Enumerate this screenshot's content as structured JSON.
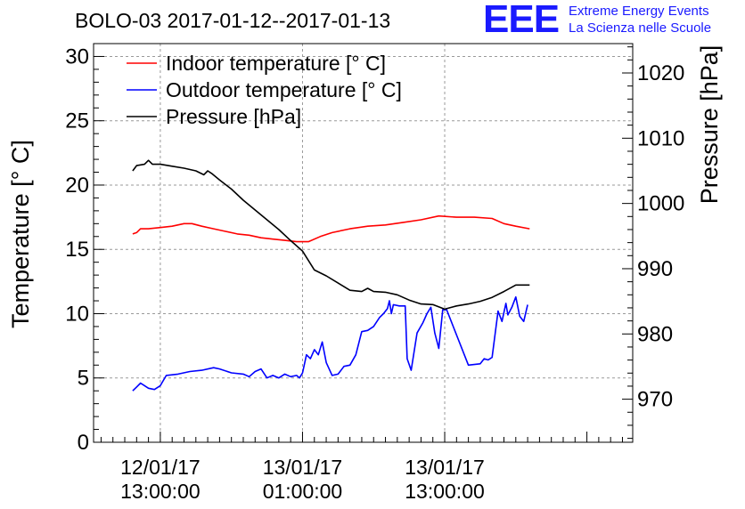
{
  "header": {
    "title": "BOLO-03 2017-01-12--2017-01-13",
    "logo": "EEE",
    "logo_line1": "Extreme Energy Events",
    "logo_line2": "La Scienza nelle Scuole"
  },
  "chart_data": {
    "type": "line",
    "title": "BOLO-03 2017-01-12--2017-01-13",
    "ylabel": "Temperature [° C]",
    "y2label": "Pressure [hPa]",
    "ylim": [
      0,
      31
    ],
    "y2lim": [
      963.4,
      1024.5
    ],
    "xlim": [
      "2017-01-12 07:22",
      "2017-01-14 04:52"
    ],
    "yticks": [
      0,
      5,
      10,
      15,
      20,
      25,
      30
    ],
    "y2ticks": [
      970,
      980,
      990,
      1000,
      1010,
      1020
    ],
    "xticks": [
      {
        "x": "2017-01-12 13:00",
        "line1": "12/01/17",
        "line2": "13:00:00"
      },
      {
        "x": "2017-01-13 01:00",
        "line1": "13/01/17",
        "line2": "01:00:00"
      },
      {
        "x": "2017-01-13 13:00",
        "line1": "13/01/17",
        "line2": "13:00:00"
      }
    ],
    "grid": true,
    "legend_position": "top-left",
    "series": [
      {
        "name": "Indoor temperature [° C]",
        "color": "#ff0000",
        "axis": "left",
        "points": [
          [
            "2017-01-12 10:40",
            16.2
          ],
          [
            "2017-01-12 11:00",
            16.3
          ],
          [
            "2017-01-12 11:20",
            16.6
          ],
          [
            "2017-01-12 12:00",
            16.6
          ],
          [
            "2017-01-12 13:00",
            16.7
          ],
          [
            "2017-01-12 14:00",
            16.8
          ],
          [
            "2017-01-12 15:00",
            17.0
          ],
          [
            "2017-01-12 15:40",
            17.0
          ],
          [
            "2017-01-12 16:30",
            16.8
          ],
          [
            "2017-01-12 17:30",
            16.6
          ],
          [
            "2017-01-12 18:30",
            16.4
          ],
          [
            "2017-01-12 19:30",
            16.2
          ],
          [
            "2017-01-12 20:30",
            16.1
          ],
          [
            "2017-01-12 21:30",
            15.9
          ],
          [
            "2017-01-12 22:30",
            15.8
          ],
          [
            "2017-01-12 23:30",
            15.7
          ],
          [
            "2017-01-13 00:30",
            15.6
          ],
          [
            "2017-01-13 01:30",
            15.6
          ],
          [
            "2017-01-13 02:30",
            16.0
          ],
          [
            "2017-01-13 03:30",
            16.3
          ],
          [
            "2017-01-13 05:00",
            16.6
          ],
          [
            "2017-01-13 06:30",
            16.8
          ],
          [
            "2017-01-13 08:00",
            16.9
          ],
          [
            "2017-01-13 09:30",
            17.1
          ],
          [
            "2017-01-13 11:00",
            17.3
          ],
          [
            "2017-01-13 12:30",
            17.6
          ],
          [
            "2017-01-13 14:00",
            17.5
          ],
          [
            "2017-01-13 15:30",
            17.5
          ],
          [
            "2017-01-13 17:00",
            17.4
          ],
          [
            "2017-01-13 18:00",
            17.0
          ],
          [
            "2017-01-13 19:00",
            16.8
          ],
          [
            "2017-01-13 20:10",
            16.6
          ]
        ]
      },
      {
        "name": "Outdoor temperature [° C]",
        "color": "#0000ff",
        "axis": "left",
        "points": [
          [
            "2017-01-12 10:40",
            4.0
          ],
          [
            "2017-01-12 11:00",
            4.3
          ],
          [
            "2017-01-12 11:20",
            4.6
          ],
          [
            "2017-01-12 11:40",
            4.4
          ],
          [
            "2017-01-12 12:00",
            4.2
          ],
          [
            "2017-01-12 12:30",
            4.1
          ],
          [
            "2017-01-12 13:00",
            4.4
          ],
          [
            "2017-01-12 13:30",
            5.2
          ],
          [
            "2017-01-12 14:30",
            5.3
          ],
          [
            "2017-01-12 15:30",
            5.5
          ],
          [
            "2017-01-12 16:30",
            5.6
          ],
          [
            "2017-01-12 17:30",
            5.8
          ],
          [
            "2017-01-12 18:00",
            5.7
          ],
          [
            "2017-01-12 19:00",
            5.4
          ],
          [
            "2017-01-12 20:00",
            5.3
          ],
          [
            "2017-01-12 20:30",
            5.1
          ],
          [
            "2017-01-12 21:00",
            5.5
          ],
          [
            "2017-01-12 21:30",
            5.7
          ],
          [
            "2017-01-12 22:00",
            5.0
          ],
          [
            "2017-01-12 22:30",
            5.2
          ],
          [
            "2017-01-12 23:00",
            5.0
          ],
          [
            "2017-01-12 23:30",
            5.3
          ],
          [
            "2017-01-13 00:00",
            5.1
          ],
          [
            "2017-01-13 00:30",
            5.2
          ],
          [
            "2017-01-13 00:45",
            5.0
          ],
          [
            "2017-01-13 01:00",
            5.4
          ],
          [
            "2017-01-13 01:20",
            6.8
          ],
          [
            "2017-01-13 01:40",
            6.5
          ],
          [
            "2017-01-13 02:00",
            7.2
          ],
          [
            "2017-01-13 02:20",
            6.8
          ],
          [
            "2017-01-13 02:40",
            7.8
          ],
          [
            "2017-01-13 03:00",
            6.2
          ],
          [
            "2017-01-13 03:30",
            5.2
          ],
          [
            "2017-01-13 04:00",
            5.3
          ],
          [
            "2017-01-13 04:30",
            5.9
          ],
          [
            "2017-01-13 05:00",
            6.0
          ],
          [
            "2017-01-13 05:30",
            6.8
          ],
          [
            "2017-01-13 06:00",
            8.6
          ],
          [
            "2017-01-13 06:30",
            8.7
          ],
          [
            "2017-01-13 07:00",
            9.0
          ],
          [
            "2017-01-13 07:30",
            9.7
          ],
          [
            "2017-01-13 07:50",
            10.0
          ],
          [
            "2017-01-13 08:10",
            10.4
          ],
          [
            "2017-01-13 08:20",
            11.0
          ],
          [
            "2017-01-13 08:30",
            10.0
          ],
          [
            "2017-01-13 08:40",
            10.7
          ],
          [
            "2017-01-13 09:10",
            10.6
          ],
          [
            "2017-01-13 09:40",
            10.6
          ],
          [
            "2017-01-13 09:50",
            6.5
          ],
          [
            "2017-01-13 10:10",
            5.6
          ],
          [
            "2017-01-13 10:40",
            8.5
          ],
          [
            "2017-01-13 11:10",
            9.3
          ],
          [
            "2017-01-13 11:30",
            10.0
          ],
          [
            "2017-01-13 11:50",
            10.5
          ],
          [
            "2017-01-13 12:10",
            8.5
          ],
          [
            "2017-01-13 12:30",
            7.3
          ],
          [
            "2017-01-13 12:50",
            10.3
          ],
          [
            "2017-01-13 13:10",
            10.3
          ],
          [
            "2017-01-13 15:00",
            6.0
          ],
          [
            "2017-01-13 16:00",
            6.1
          ],
          [
            "2017-01-13 16:20",
            6.5
          ],
          [
            "2017-01-13 16:40",
            6.4
          ],
          [
            "2017-01-13 17:00",
            6.6
          ],
          [
            "2017-01-13 17:30",
            10.2
          ],
          [
            "2017-01-13 17:50",
            9.4
          ],
          [
            "2017-01-13 18:10",
            10.8
          ],
          [
            "2017-01-13 18:20",
            9.9
          ],
          [
            "2017-01-13 18:40",
            10.5
          ],
          [
            "2017-01-13 19:00",
            11.3
          ],
          [
            "2017-01-13 19:20",
            9.8
          ],
          [
            "2017-01-13 19:40",
            9.4
          ],
          [
            "2017-01-13 20:00",
            10.7
          ]
        ]
      },
      {
        "name": "Pressure [hPa]",
        "color": "#000000",
        "axis": "right",
        "points": [
          [
            "2017-01-12 10:40",
            1005.0
          ],
          [
            "2017-01-12 11:00",
            1005.8
          ],
          [
            "2017-01-12 11:40",
            1006.0
          ],
          [
            "2017-01-12 12:00",
            1006.6
          ],
          [
            "2017-01-12 12:20",
            1006.0
          ],
          [
            "2017-01-12 13:00",
            1006.0
          ],
          [
            "2017-01-12 14:00",
            1005.7
          ],
          [
            "2017-01-12 15:00",
            1005.4
          ],
          [
            "2017-01-12 16:00",
            1005.0
          ],
          [
            "2017-01-12 16:40",
            1004.4
          ],
          [
            "2017-01-12 17:00",
            1005.0
          ],
          [
            "2017-01-12 17:20",
            1004.6
          ],
          [
            "2017-01-12 18:00",
            1003.6
          ],
          [
            "2017-01-12 19:00",
            1002.2
          ],
          [
            "2017-01-12 20:00",
            1000.5
          ],
          [
            "2017-01-12 21:00",
            999.0
          ],
          [
            "2017-01-12 22:00",
            997.5
          ],
          [
            "2017-01-12 23:00",
            996.0
          ],
          [
            "2017-01-13 00:00",
            994.3
          ],
          [
            "2017-01-13 01:00",
            992.7
          ],
          [
            "2017-01-13 02:00",
            989.8
          ],
          [
            "2017-01-13 03:00",
            988.9
          ],
          [
            "2017-01-13 04:00",
            987.8
          ],
          [
            "2017-01-13 05:00",
            986.7
          ],
          [
            "2017-01-13 06:00",
            986.5
          ],
          [
            "2017-01-13 06:30",
            987.0
          ],
          [
            "2017-01-13 07:00",
            986.5
          ],
          [
            "2017-01-13 08:00",
            986.4
          ],
          [
            "2017-01-13 09:00",
            986.0
          ],
          [
            "2017-01-13 10:00",
            985.2
          ],
          [
            "2017-01-13 11:00",
            984.6
          ],
          [
            "2017-01-13 12:00",
            984.5
          ],
          [
            "2017-01-13 13:00",
            983.8
          ],
          [
            "2017-01-13 14:00",
            984.3
          ],
          [
            "2017-01-13 15:00",
            984.6
          ],
          [
            "2017-01-13 16:00",
            985.0
          ],
          [
            "2017-01-13 17:00",
            985.6
          ],
          [
            "2017-01-13 18:00",
            986.5
          ],
          [
            "2017-01-13 19:00",
            987.5
          ],
          [
            "2017-01-13 20:10",
            987.5
          ]
        ]
      }
    ]
  }
}
